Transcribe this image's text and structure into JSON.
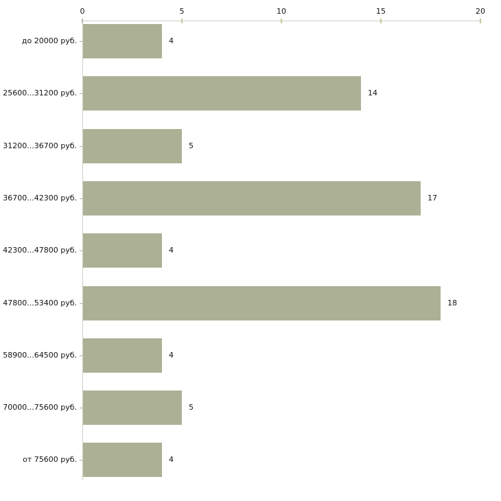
{
  "chart_data": {
    "type": "bar",
    "orientation": "horizontal",
    "title": "",
    "xlabel": "",
    "ylabel": "",
    "categories": [
      "до 20000 руб.",
      "25600...31200 руб.",
      "31200...36700 руб.",
      "36700...42300 руб.",
      "42300...47800 руб.",
      "47800...53400 руб.",
      "58900...64500 руб.",
      "70000...75600 руб.",
      "от 75600 руб."
    ],
    "values": [
      4,
      14,
      5,
      17,
      4,
      18,
      4,
      5,
      4
    ],
    "value_labels": [
      "4",
      "14",
      "5",
      "17",
      "4",
      "18",
      "4",
      "5",
      "4"
    ],
    "xticks": [
      0,
      5,
      10,
      15,
      20
    ],
    "xlim": [
      0,
      20
    ],
    "axis_position": "top",
    "grid": false,
    "legend": false,
    "colors": {
      "bar": "#acb196",
      "axis_line": "#cfcfc6",
      "tick_mark": "#c2c89e",
      "text": "#111111",
      "background": "#ffffff"
    }
  }
}
